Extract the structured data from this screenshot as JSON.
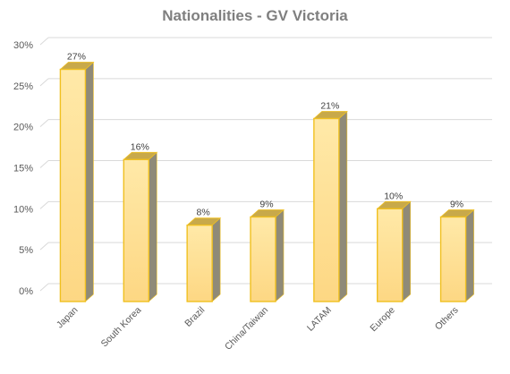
{
  "chart_data": {
    "type": "bar",
    "title": "Nationalities - GV Victoria",
    "categories": [
      "Japan",
      "South Korea",
      "Brazil",
      "China/Taiwan",
      "LATAM",
      "Europe",
      "Others"
    ],
    "values": [
      27,
      16,
      8,
      9,
      21,
      10,
      9
    ],
    "data_labels": [
      "27%",
      "16%",
      "8%",
      "9%",
      "21%",
      "10%",
      "9%"
    ],
    "y_ticks": [
      0,
      5,
      10,
      15,
      20,
      25,
      30
    ],
    "y_tick_labels": [
      "0%",
      "5%",
      "10%",
      "15%",
      "20%",
      "25%",
      "30%"
    ],
    "ylim": [
      0,
      30
    ],
    "xlabel": "",
    "ylabel": "",
    "grid": true,
    "legend": "none",
    "bar_style": "3d-column",
    "colors": {
      "bar_fill_top": "#ffe9a8",
      "bar_fill_bottom": "#fdd783",
      "bar_outline": "#f0c020",
      "bar_side": "#8f8a78",
      "bar_cap": "#c8a94a",
      "gridline": "#d9d9d9",
      "title": "#7f7f7f",
      "text": "#595959"
    }
  }
}
